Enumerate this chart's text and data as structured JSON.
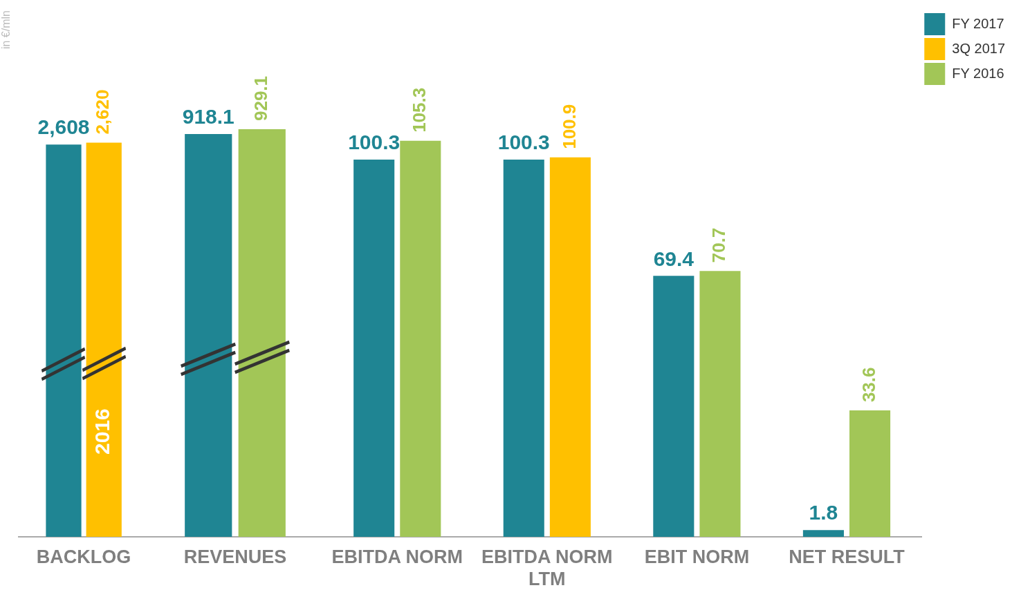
{
  "chart_data": [
    {
      "type": "bar",
      "ylabel": "in €/mln",
      "categories": [
        "BACKLOG"
      ],
      "tick_labels": "x",
      "grid": false,
      "legend": false,
      "series": [
        {
          "color": "#1f8593",
          "values": [
            2608
          ],
          "value_labels": [
            "2,608"
          ]
        },
        {
          "color": "#ffc000",
          "values": [
            2620
          ],
          "value_labels": [
            "2,620"
          ]
        }
      ],
      "annotations": [
        {
          "text": "2016",
          "x": "BACKLOG",
          "y": 700
        }
      ]
    },
    {
      "type": "bar",
      "categories": [
        "REVENUES"
      ],
      "tick_labels": "x",
      "grid": false,
      "legend": false,
      "series": [
        {
          "color": "#1f8593",
          "values": [
            918.1
          ],
          "value_labels": [
            "918.1"
          ]
        },
        {
          "color": "#a2c657",
          "values": [
            929.1
          ],
          "value_labels": [
            "929.1"
          ]
        }
      ]
    },
    {
      "type": "bar",
      "categories": [
        "EBITDA NORM",
        "EBITDA NORM LTM",
        "EBIT NORM",
        "NET RESULT"
      ],
      "tick_labels": "x",
      "grid": false,
      "legend": "top right",
      "series": [
        {
          "name": "FY 2017",
          "color": "#1f8593",
          "values": [
            100.3,
            100.3,
            69.4,
            1.8
          ],
          "value_labels": [
            "100.3",
            "100.3",
            "69.4",
            "1.8"
          ]
        },
        {
          "name": "3Q 2017",
          "color": "#ffc000",
          "values": [
            null,
            100.9,
            null,
            null
          ],
          "value_labels": [
            null,
            "100.9",
            null,
            null
          ]
        },
        {
          "name": "FY 2016",
          "color": "#a2c657",
          "values": [
            105.3,
            null,
            70.7,
            33.6
          ],
          "value_labels": [
            "105.3",
            null,
            "70.7",
            "33.6"
          ]
        }
      ]
    }
  ]
}
